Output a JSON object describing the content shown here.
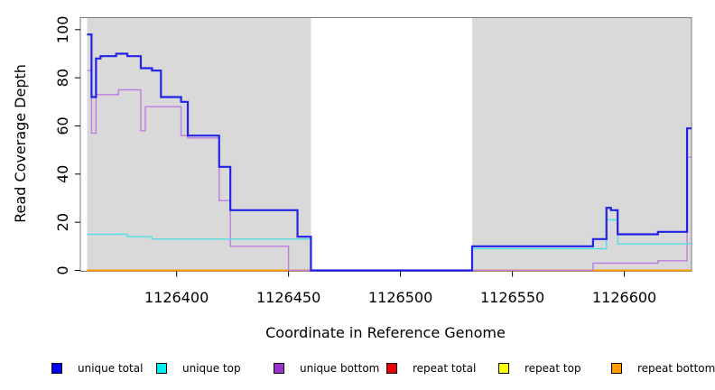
{
  "figure": {
    "background_color": "#ffffff",
    "panel_color": "#d9d9d9",
    "box_color": "#7a7a7a",
    "axis_color": "#000000"
  },
  "chart_data": {
    "type": "line",
    "subtype": "step",
    "title": "",
    "xlabel": "Coordinate in Reference Genome",
    "ylabel": "Read Coverage Depth",
    "x_range": [
      1126357,
      1126630
    ],
    "y_range": [
      0,
      105
    ],
    "x_end": 1126630,
    "grid": false,
    "legend_position": "bottom",
    "x_ticks": [
      1126400,
      1126450,
      1126500,
      1126550,
      1126600
    ],
    "x_tick_labels": [
      "1126400",
      "1126450",
      "1126500",
      "1126550",
      "1126600"
    ],
    "y_ticks": [
      0,
      20,
      40,
      60,
      80,
      100
    ],
    "y_tick_labels": [
      "0",
      "20",
      "40",
      "60",
      "80",
      "100"
    ],
    "shaded_regions": [
      [
        1126360,
        1126460
      ],
      [
        1126532,
        1126630
      ]
    ],
    "series": [
      {
        "name": "repeat total",
        "color": "#dd2222",
        "width": 1.4,
        "points": [
          [
            1126360,
            0
          ]
        ]
      },
      {
        "name": "repeat top",
        "color": "#f0e832",
        "width": 1.4,
        "points": [
          [
            1126360,
            0
          ]
        ]
      },
      {
        "name": "repeat bottom",
        "color": "#ff9d00",
        "width": 2,
        "points": [
          [
            1126360,
            0
          ]
        ]
      },
      {
        "name": "unique bottom",
        "color": "#bd7ce2",
        "width": 1.4,
        "points": [
          [
            1126360,
            83
          ],
          [
            1126362,
            57
          ],
          [
            1126364,
            73
          ],
          [
            1126374,
            75
          ],
          [
            1126384,
            58
          ],
          [
            1126386,
            68
          ],
          [
            1126402,
            56
          ],
          [
            1126405,
            55
          ],
          [
            1126419,
            29
          ],
          [
            1126424,
            10
          ],
          [
            1126450,
            0
          ],
          [
            1126586,
            3
          ],
          [
            1126615,
            4
          ],
          [
            1126628,
            47
          ]
        ]
      },
      {
        "name": "unique top",
        "color": "#55dde8",
        "width": 1.4,
        "points": [
          [
            1126360,
            15
          ],
          [
            1126378,
            14
          ],
          [
            1126389,
            13
          ],
          [
            1126460,
            0
          ],
          [
            1126532,
            9
          ],
          [
            1126592,
            21
          ],
          [
            1126597,
            11
          ]
        ]
      },
      {
        "name": "unique total",
        "color": "#2222e8",
        "width": 2.2,
        "points": [
          [
            1126360,
            98
          ],
          [
            1126362,
            72
          ],
          [
            1126364,
            88
          ],
          [
            1126366,
            89
          ],
          [
            1126373,
            90
          ],
          [
            1126378,
            89
          ],
          [
            1126384,
            84
          ],
          [
            1126389,
            83
          ],
          [
            1126393,
            72
          ],
          [
            1126402,
            70
          ],
          [
            1126405,
            56
          ],
          [
            1126419,
            43
          ],
          [
            1126424,
            25
          ],
          [
            1126454,
            14
          ],
          [
            1126460,
            0
          ],
          [
            1126532,
            10
          ],
          [
            1126586,
            13
          ],
          [
            1126592,
            26
          ],
          [
            1126594,
            25
          ],
          [
            1126597,
            15
          ],
          [
            1126615,
            16
          ],
          [
            1126628,
            59
          ]
        ]
      }
    ],
    "legend": [
      {
        "label": "unique total",
        "color": "#0000f0"
      },
      {
        "label": "unique top",
        "color": "#00eeee"
      },
      {
        "label": "unique bottom",
        "color": "#9932cc"
      },
      {
        "label": "repeat total",
        "color": "#ee0000"
      },
      {
        "label": "repeat top",
        "color": "#ffff00"
      },
      {
        "label": "repeat bottom",
        "color": "#ff9d00"
      }
    ]
  }
}
